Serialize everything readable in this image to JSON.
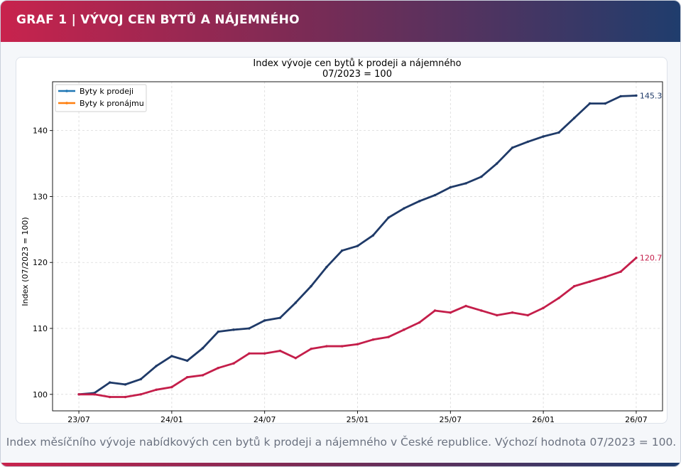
{
  "header": {
    "title": "GRAF 1 | VÝVOJ CEN BYTŮ A NÁJEMNÉHO"
  },
  "caption": "Index měsíčního vývoje nabídkových cen bytů k prodeji a nájemného v České republice. Výchozí hodnota 07/2023 = 100.",
  "colors": {
    "sale": "#1f3a68",
    "rent": "#c41e4a",
    "banner_start": "#c8234d",
    "banner_end": "#1f3d6d"
  },
  "chart_data": {
    "type": "line",
    "title": "Index vývoje cen bytů k prodeji a nájemného",
    "subtitle": "07/2023 = 100",
    "xlabel": "",
    "ylabel": "Index (07/2023 = 100)",
    "xlim": [
      -1.7,
      37.7
    ],
    "ylim": [
      97.5,
      147.4
    ],
    "grid": true,
    "legend_position": "top-left",
    "x_ticks": [
      0,
      6,
      12,
      18,
      24,
      30,
      36
    ],
    "x_tick_labels": [
      "23/07",
      "24/01",
      "24/07",
      "25/01",
      "25/07",
      "26/01",
      "26/07"
    ],
    "y_ticks": [
      100,
      110,
      120,
      130,
      140
    ],
    "y_tick_labels": [
      "100",
      "110",
      "120",
      "130",
      "140"
    ],
    "series": [
      {
        "name": "Byty k prodeji",
        "color": "#1f3a68",
        "end_label": "145.3",
        "values": [
          100,
          100.2,
          101.8,
          101.5,
          102.3,
          104.3,
          105.8,
          105.1,
          107.0,
          109.5,
          109.8,
          110.0,
          111.2,
          111.6,
          113.9,
          116.4,
          119.3,
          121.8,
          122.5,
          124.1,
          126.8,
          128.2,
          129.3,
          130.2,
          131.4,
          132.0,
          133.0,
          135.0,
          137.4,
          138.3,
          139.1,
          139.7,
          141.9,
          144.1,
          144.1,
          145.2,
          145.3
        ]
      },
      {
        "name": "Byty k pronájmu",
        "color": "#c41e4a",
        "end_label": "120.7",
        "values": [
          100,
          100.0,
          99.6,
          99.6,
          100.0,
          100.7,
          101.1,
          102.6,
          102.9,
          104.0,
          104.7,
          106.2,
          106.2,
          106.6,
          105.5,
          106.9,
          107.3,
          107.3,
          107.6,
          108.3,
          108.7,
          109.8,
          110.9,
          112.7,
          112.4,
          113.4,
          112.7,
          112.0,
          112.4,
          112.0,
          113.1,
          114.6,
          116.4,
          117.1,
          117.8,
          118.6,
          120.7
        ]
      }
    ]
  }
}
